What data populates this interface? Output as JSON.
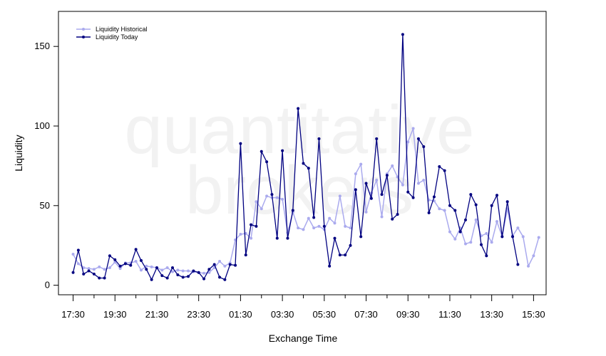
{
  "chart_data": {
    "type": "line",
    "xlabel": "Exchange Time",
    "ylabel": "Liquidity",
    "watermark": [
      "quantitative",
      "brokers"
    ],
    "x_ticks": [
      "17:30",
      "19:30",
      "21:30",
      "23:30",
      "01:30",
      "03:30",
      "05:30",
      "07:30",
      "09:30",
      "11:30",
      "13:30",
      "15:30"
    ],
    "y_ticks": [
      0,
      50,
      100,
      150
    ],
    "ylim": [
      -6,
      172
    ],
    "x_range_hours": [
      16.8,
      39.0
    ],
    "legend": {
      "placement": "top-left"
    },
    "colors": {
      "historical": "#aaaaee",
      "today": "#000080",
      "axis": "#000000"
    },
    "series": [
      {
        "name": "Liquidity Historical",
        "color": "#aaaaee",
        "points": [
          [
            17.5,
            19.5
          ],
          [
            17.75,
            13.5
          ],
          [
            18.0,
            11.0
          ],
          [
            18.25,
            10.5
          ],
          [
            18.5,
            10.0
          ],
          [
            18.75,
            11.5
          ],
          [
            19.0,
            10.0
          ],
          [
            19.25,
            11.0
          ],
          [
            19.5,
            14.5
          ],
          [
            19.75,
            10.5
          ],
          [
            20.0,
            14.0
          ],
          [
            20.25,
            14.0
          ],
          [
            20.5,
            15.0
          ],
          [
            20.75,
            9.5
          ],
          [
            21.0,
            12.0
          ],
          [
            21.25,
            11.5
          ],
          [
            21.5,
            11.0
          ],
          [
            21.75,
            9.5
          ],
          [
            22.0,
            11.0
          ],
          [
            22.25,
            8.5
          ],
          [
            22.5,
            9.5
          ],
          [
            22.75,
            9.0
          ],
          [
            23.0,
            9.0
          ],
          [
            23.25,
            8.5
          ],
          [
            23.5,
            8.0
          ],
          [
            23.75,
            7.5
          ],
          [
            24.0,
            8.0
          ],
          [
            24.25,
            11.0
          ],
          [
            24.5,
            15.0
          ],
          [
            24.75,
            12.0
          ],
          [
            25.0,
            14.0
          ],
          [
            25.25,
            28.5
          ],
          [
            25.5,
            32.0
          ],
          [
            25.75,
            32.5
          ],
          [
            26.0,
            29.5
          ],
          [
            26.25,
            52.5
          ],
          [
            26.5,
            48.0
          ],
          [
            26.75,
            56.0
          ],
          [
            27.0,
            55.0
          ],
          [
            27.25,
            55.0
          ],
          [
            27.5,
            54.0
          ],
          [
            27.75,
            33.0
          ],
          [
            28.0,
            46.0
          ],
          [
            28.25,
            36.0
          ],
          [
            28.5,
            35.0
          ],
          [
            28.75,
            42.0
          ],
          [
            29.0,
            36.0
          ],
          [
            29.25,
            37.0
          ],
          [
            29.5,
            35.0
          ],
          [
            29.75,
            42.0
          ],
          [
            30.0,
            39.0
          ],
          [
            30.25,
            56.0
          ],
          [
            30.5,
            37.0
          ],
          [
            30.75,
            36.0
          ],
          [
            31.0,
            70.0
          ],
          [
            31.25,
            76.0
          ],
          [
            31.5,
            46.0
          ],
          [
            31.75,
            58.0
          ],
          [
            32.0,
            66.0
          ],
          [
            32.25,
            43.0
          ],
          [
            32.5,
            70.0
          ],
          [
            32.75,
            75.0
          ],
          [
            33.0,
            68.0
          ],
          [
            33.25,
            63.0
          ],
          [
            33.5,
            90.0
          ],
          [
            33.75,
            98.5
          ],
          [
            34.0,
            64.0
          ],
          [
            34.25,
            66.0
          ],
          [
            34.5,
            53.5
          ],
          [
            34.75,
            53.0
          ],
          [
            35.0,
            48.0
          ],
          [
            35.25,
            47.0
          ],
          [
            35.5,
            33.5
          ],
          [
            35.75,
            29.0
          ],
          [
            36.0,
            36.0
          ],
          [
            36.25,
            26.0
          ],
          [
            36.5,
            27.0
          ],
          [
            36.75,
            41.0
          ],
          [
            37.0,
            31.0
          ],
          [
            37.25,
            32.5
          ],
          [
            37.5,
            27.0
          ],
          [
            37.75,
            40.0
          ],
          [
            38.0,
            30.5
          ],
          [
            38.25,
            48.0
          ],
          [
            38.5,
            31.0
          ],
          [
            38.75,
            36.0
          ],
          [
            39.0,
            30.5
          ],
          [
            39.25,
            12.0
          ],
          [
            39.5,
            18.5
          ],
          [
            39.75,
            30.0
          ]
        ]
      },
      {
        "name": "Liquidity Today",
        "color": "#000080",
        "points": [
          [
            17.5,
            8.0
          ],
          [
            17.75,
            22.0
          ],
          [
            18.0,
            7.0
          ],
          [
            18.25,
            9.0
          ],
          [
            18.5,
            7.0
          ],
          [
            18.75,
            4.5
          ],
          [
            19.0,
            4.5
          ],
          [
            19.25,
            18.5
          ],
          [
            19.5,
            16.0
          ],
          [
            19.75,
            12.0
          ],
          [
            20.0,
            13.5
          ],
          [
            20.25,
            12.5
          ],
          [
            20.5,
            22.5
          ],
          [
            20.75,
            15.5
          ],
          [
            21.0,
            10.0
          ],
          [
            21.25,
            3.5
          ],
          [
            21.5,
            11.0
          ],
          [
            21.75,
            6.0
          ],
          [
            22.0,
            4.5
          ],
          [
            22.25,
            11.0
          ],
          [
            22.5,
            6.5
          ],
          [
            22.75,
            5.0
          ],
          [
            23.0,
            5.5
          ],
          [
            23.25,
            9.0
          ],
          [
            23.5,
            8.0
          ],
          [
            23.75,
            4.0
          ],
          [
            24.0,
            10.0
          ],
          [
            24.25,
            13.0
          ],
          [
            24.5,
            5.0
          ],
          [
            24.75,
            3.5
          ],
          [
            25.0,
            13.0
          ],
          [
            25.25,
            12.5
          ],
          [
            25.5,
            89.0
          ],
          [
            25.75,
            19.0
          ],
          [
            26.0,
            38.0
          ],
          [
            26.25,
            37.0
          ],
          [
            26.5,
            84.0
          ],
          [
            26.75,
            77.5
          ],
          [
            27.0,
            57.0
          ],
          [
            27.25,
            29.5
          ],
          [
            27.5,
            84.5
          ],
          [
            27.75,
            29.5
          ],
          [
            28.0,
            47.0
          ],
          [
            28.25,
            111.0
          ],
          [
            28.5,
            76.5
          ],
          [
            28.75,
            73.5
          ],
          [
            29.0,
            42.5
          ],
          [
            29.25,
            92.0
          ],
          [
            29.5,
            37.0
          ],
          [
            29.75,
            12.0
          ],
          [
            30.0,
            29.5
          ],
          [
            30.25,
            19.0
          ],
          [
            30.5,
            19.0
          ],
          [
            30.75,
            25.0
          ],
          [
            31.0,
            60.0
          ],
          [
            31.25,
            30.5
          ],
          [
            31.5,
            64.0
          ],
          [
            31.75,
            54.5
          ],
          [
            32.0,
            92.0
          ],
          [
            32.25,
            57.0
          ],
          [
            32.5,
            69.0
          ],
          [
            32.75,
            41.5
          ],
          [
            33.0,
            44.5
          ],
          [
            33.25,
            157.5
          ],
          [
            33.5,
            58.5
          ],
          [
            33.75,
            55.0
          ],
          [
            34.0,
            92.0
          ],
          [
            34.25,
            87.0
          ],
          [
            34.5,
            45.5
          ],
          [
            34.75,
            55.5
          ],
          [
            35.0,
            74.5
          ],
          [
            35.25,
            72.0
          ],
          [
            35.5,
            50.0
          ],
          [
            35.75,
            47.0
          ],
          [
            36.0,
            33.5
          ],
          [
            36.25,
            41.0
          ],
          [
            36.5,
            57.0
          ],
          [
            36.75,
            50.5
          ],
          [
            37.0,
            25.5
          ],
          [
            37.25,
            18.5
          ],
          [
            37.5,
            50.0
          ],
          [
            37.75,
            56.5
          ],
          [
            38.0,
            30.5
          ],
          [
            38.25,
            52.5
          ],
          [
            38.5,
            30.5
          ],
          [
            38.75,
            13.0
          ]
        ]
      }
    ]
  }
}
